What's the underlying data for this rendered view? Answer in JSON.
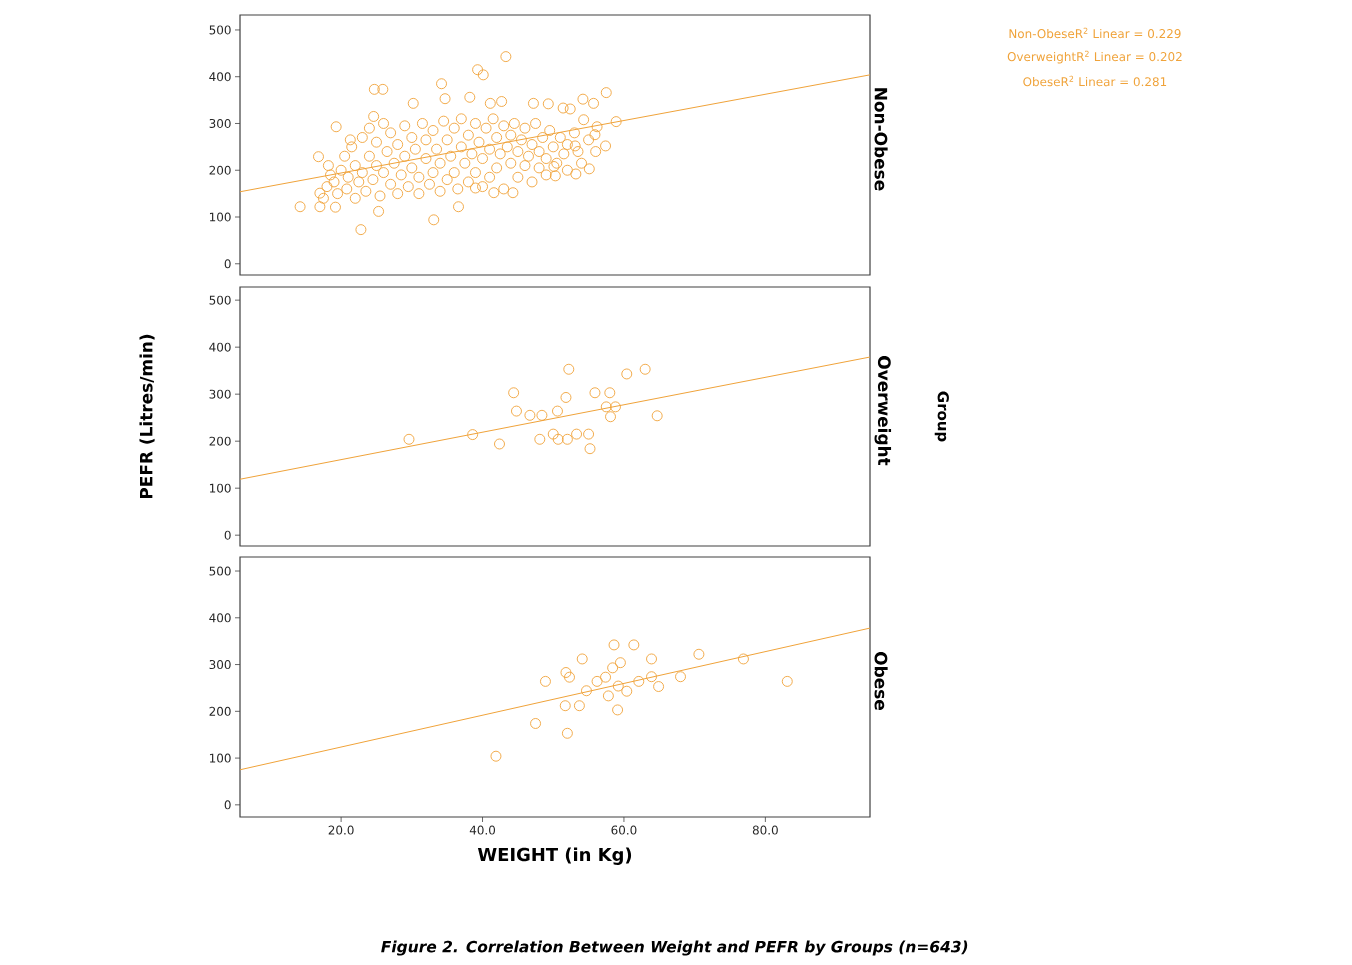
{
  "chart_data": [
    {
      "type": "scatter",
      "title": "Non-Obese",
      "xlim": [
        5.7,
        94.8
      ],
      "ylim": [
        -24,
        532
      ],
      "yticks": [
        0,
        100,
        200,
        300,
        400,
        500
      ],
      "tick_labels": "y",
      "annotations": [
        "Non-ObeseR$^{2}$ Linear = 0.229",
        "OverweightR$^{2}$ Linear = 0.202",
        "ObeseR$^{2}$ Linear = 0.281"
      ],
      "series": [
        {
          "marker": "circle",
          "color": "#f0a33a",
          "x": [
            14.2,
            22.8,
            33.1,
            36.6,
            43.3,
            39.3,
            40.1,
            24.7,
            25.9,
            34.2,
            30.2,
            34.7,
            19.3,
            57.5,
            58.9,
            57.4,
            55.1,
            53.2,
            47.2,
            49.3,
            51.4,
            54.2,
            55.7,
            53.1,
            44.3,
            41.6,
            39.0,
            17.0,
            17.0,
            19.2,
            25.3,
            16.8,
            21.3,
            24.6,
            38.2,
            41.1,
            42.7,
            50.3,
            50.1,
            52.4,
            54.3,
            56.2,
            55.9,
            17.5,
            18,
            18.5,
            18.2,
            19,
            19.5,
            20,
            20.5,
            20.8,
            21,
            21.5,
            22,
            22,
            22.5,
            23,
            23,
            23.5,
            24,
            24,
            24.5,
            25,
            25,
            25.5,
            26,
            26,
            26.5,
            27,
            27,
            27.5,
            28,
            28,
            28.5,
            29,
            29,
            29.5,
            30,
            30,
            30.5,
            31,
            31,
            31.5,
            32,
            32,
            32.5,
            33,
            33,
            33.5,
            34,
            34,
            34.5,
            35,
            35,
            35.5,
            36,
            36,
            36.5,
            37,
            37,
            37.5,
            38,
            38,
            38.5,
            39,
            39,
            39.5,
            40,
            40,
            40.5,
            41,
            41,
            41.5,
            42,
            42,
            42.5,
            43,
            43,
            43.5,
            44,
            44,
            44.5,
            45,
            45,
            45.5,
            46,
            46,
            46.5,
            47,
            47,
            47.5,
            48,
            48,
            48.5,
            49,
            49,
            49.5,
            50,
            50.5,
            51,
            51.5,
            52,
            52,
            53,
            53.5,
            54,
            55,
            56
          ],
          "values": [
            122,
            73,
            94,
            122,
            443,
            415,
            404,
            373,
            373,
            385,
            343,
            353,
            293,
            366,
            304,
            252,
            203,
            192,
            343,
            342,
            333,
            352,
            343,
            252,
            152,
            152,
            162,
            151,
            122,
            121,
            112,
            229,
            265,
            315,
            356,
            343,
            347,
            188,
            208,
            331,
            308,
            293,
            276,
            140,
            165,
            190,
            210,
            175,
            150,
            200,
            230,
            160,
            185,
            250,
            140,
            210,
            175,
            270,
            195,
            155,
            230,
            290,
            180,
            210,
            260,
            145,
            195,
            300,
            240,
            170,
            280,
            215,
            150,
            255,
            190,
            295,
            230,
            165,
            270,
            205,
            245,
            150,
            185,
            300,
            225,
            265,
            170,
            195,
            285,
            245,
            155,
            215,
            305,
            180,
            265,
            230,
            195,
            290,
            160,
            250,
            310,
            215,
            175,
            275,
            235,
            300,
            195,
            260,
            165,
            225,
            290,
            245,
            185,
            310,
            205,
            270,
            235,
            160,
            295,
            250,
            215,
            275,
            300,
            185,
            240,
            265,
            210,
            290,
            230,
            175,
            255,
            300,
            240,
            205,
            270,
            190,
            225,
            285,
            250,
            215,
            270,
            235,
            200,
            255,
            280,
            240,
            215,
            265,
            240
          ]
        },
        {
          "type": "line",
          "color": "#f0a33a",
          "x": [
            5.7,
            94.8
          ],
          "values": [
            154,
            404
          ]
        }
      ]
    },
    {
      "type": "scatter",
      "title": "Overweight",
      "ylabel": "PEFR (Litres/min)",
      "xlim": [
        5.7,
        94.8
      ],
      "ylim": [
        -23,
        528
      ],
      "yticks": [
        0,
        100,
        200,
        300,
        400,
        500
      ],
      "tick_labels": "y",
      "annotations": [
        "Group"
      ],
      "series": [
        {
          "marker": "circle",
          "color": "#f0a33a",
          "x": [
            29.6,
            38.6,
            42.4,
            44.4,
            44.8,
            46.7,
            48.4,
            48.1,
            50.0,
            50.7,
            52.0,
            50.6,
            51.8,
            52.2,
            53.3,
            55.0,
            55.2,
            55.9,
            58.0,
            57.5,
            58.8,
            58.1,
            60.4,
            63.0,
            64.7
          ],
          "values": [
            204,
            214,
            194,
            303,
            264,
            255,
            255,
            204,
            215,
            204,
            204,
            264,
            293,
            353,
            215,
            215,
            184,
            303,
            303,
            273,
            273,
            252,
            343,
            353,
            254
          ]
        },
        {
          "type": "line",
          "color": "#f0a33a",
          "x": [
            5.7,
            94.8
          ],
          "values": [
            119,
            379
          ]
        }
      ]
    },
    {
      "type": "scatter",
      "title": "Obese",
      "xlabel": "WEIGHT (in Kg)",
      "xlim": [
        5.7,
        94.8
      ],
      "ylim": [
        -26,
        530
      ],
      "yticks": [
        0,
        100,
        200,
        300,
        400,
        500
      ],
      "xticks": [
        {
          "value": 20,
          "label": "20.0"
        },
        {
          "value": 40,
          "label": "40.0"
        },
        {
          "value": 60,
          "label": "60.0"
        },
        {
          "value": 80,
          "label": "80.0"
        }
      ],
      "annotations": [
        "Figure 2. Correlation Between Weight and PEFR by Groups (n=643)"
      ],
      "series": [
        {
          "marker": "circle",
          "color": "#f0a33a",
          "x": [
            41.9,
            47.5,
            52.0,
            48.9,
            51.7,
            53.7,
            51.8,
            52.3,
            54.1,
            54.7,
            56.2,
            57.4,
            57.8,
            59.1,
            59.2,
            60.4,
            58.6,
            61.4,
            59.5,
            58.4,
            62.1,
            63.9,
            63.9,
            64.9,
            68.0,
            70.6,
            76.9,
            83.1
          ],
          "values": [
            104,
            174,
            153,
            264,
            212,
            212,
            283,
            273,
            312,
            244,
            264,
            273,
            233,
            203,
            254,
            243,
            342,
            342,
            304,
            293,
            264,
            312,
            274,
            253,
            274,
            322,
            312,
            264
          ]
        },
        {
          "type": "line",
          "color": "#f0a33a",
          "x": [
            5.7,
            94.8
          ],
          "values": [
            75,
            378
          ]
        }
      ]
    }
  ]
}
